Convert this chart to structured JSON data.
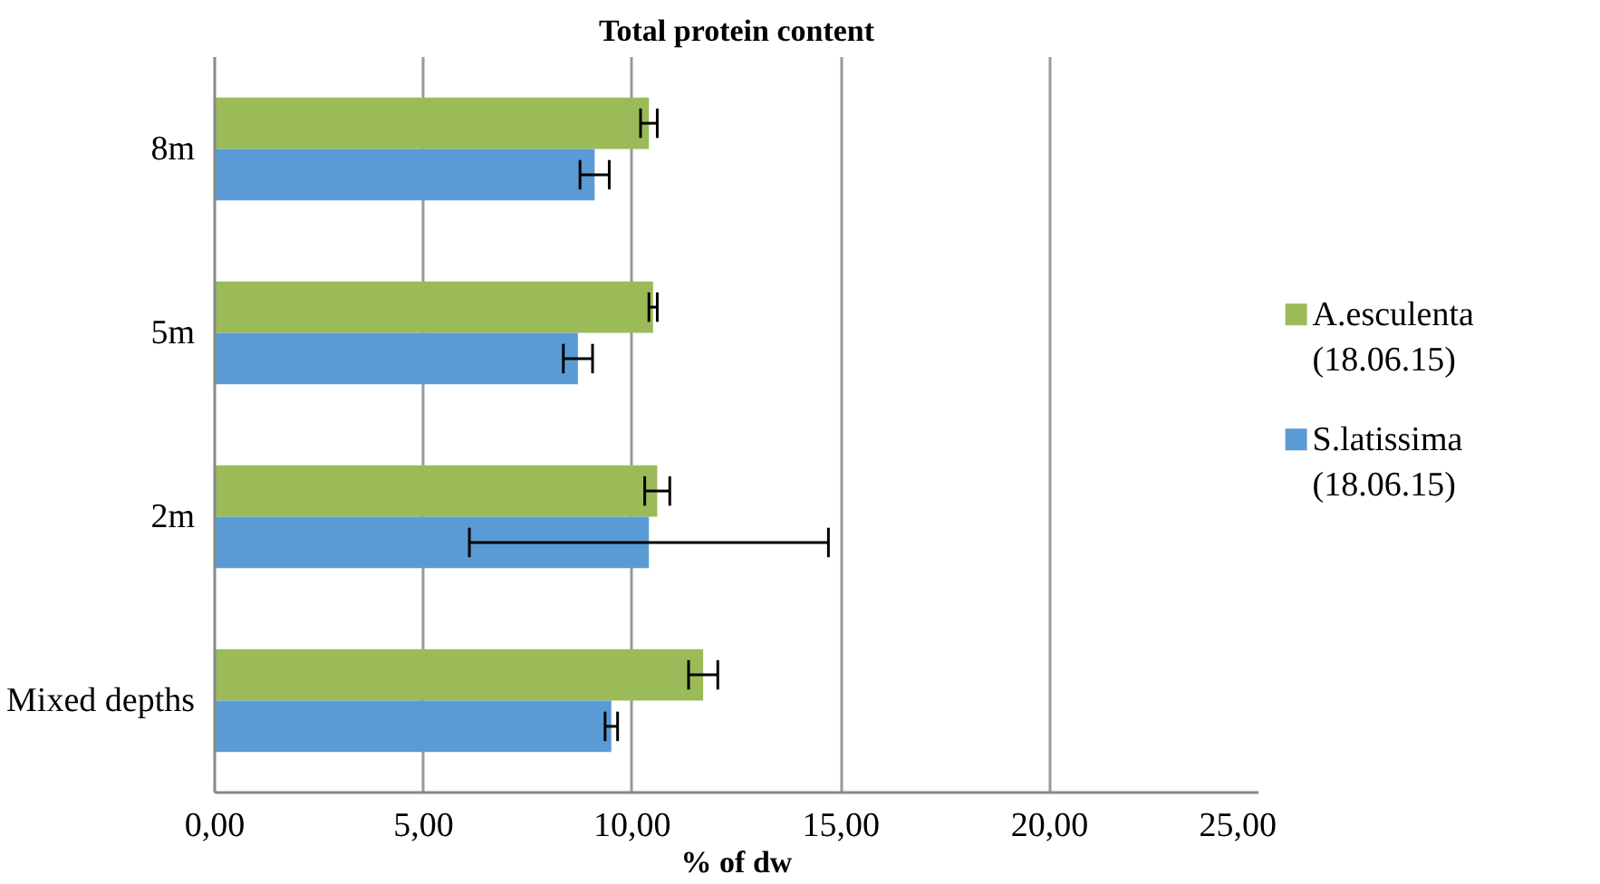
{
  "chart_data": {
    "type": "bar",
    "orientation": "horizontal",
    "title": "Total protein content",
    "xlabel": "% of dw",
    "categories": [
      "8m",
      "5m",
      "2m",
      "Mixed depths"
    ],
    "series": [
      {
        "name": "A.esculenta (18.06.15)",
        "color": "#9bbb59",
        "values": [
          10.4,
          10.5,
          10.6,
          11.7
        ],
        "errors": [
          0.2,
          0.1,
          0.3,
          0.35
        ]
      },
      {
        "name": "S.latissima (18.06.15)",
        "color": "#5b9bd5",
        "values": [
          9.1,
          8.7,
          10.4,
          9.5
        ],
        "errors": [
          0.35,
          0.35,
          4.3,
          0.15
        ]
      }
    ],
    "xlim": [
      0,
      25
    ],
    "xticks": [
      {
        "value": 0,
        "label": "0,00"
      },
      {
        "value": 5,
        "label": "5,00"
      },
      {
        "value": 10,
        "label": "10,00"
      },
      {
        "value": 15,
        "label": "15,00"
      },
      {
        "value": 20,
        "label": "20,00"
      },
      {
        "value": 25,
        "label": "25,00"
      }
    ],
    "grid": "x",
    "legend": "right"
  }
}
